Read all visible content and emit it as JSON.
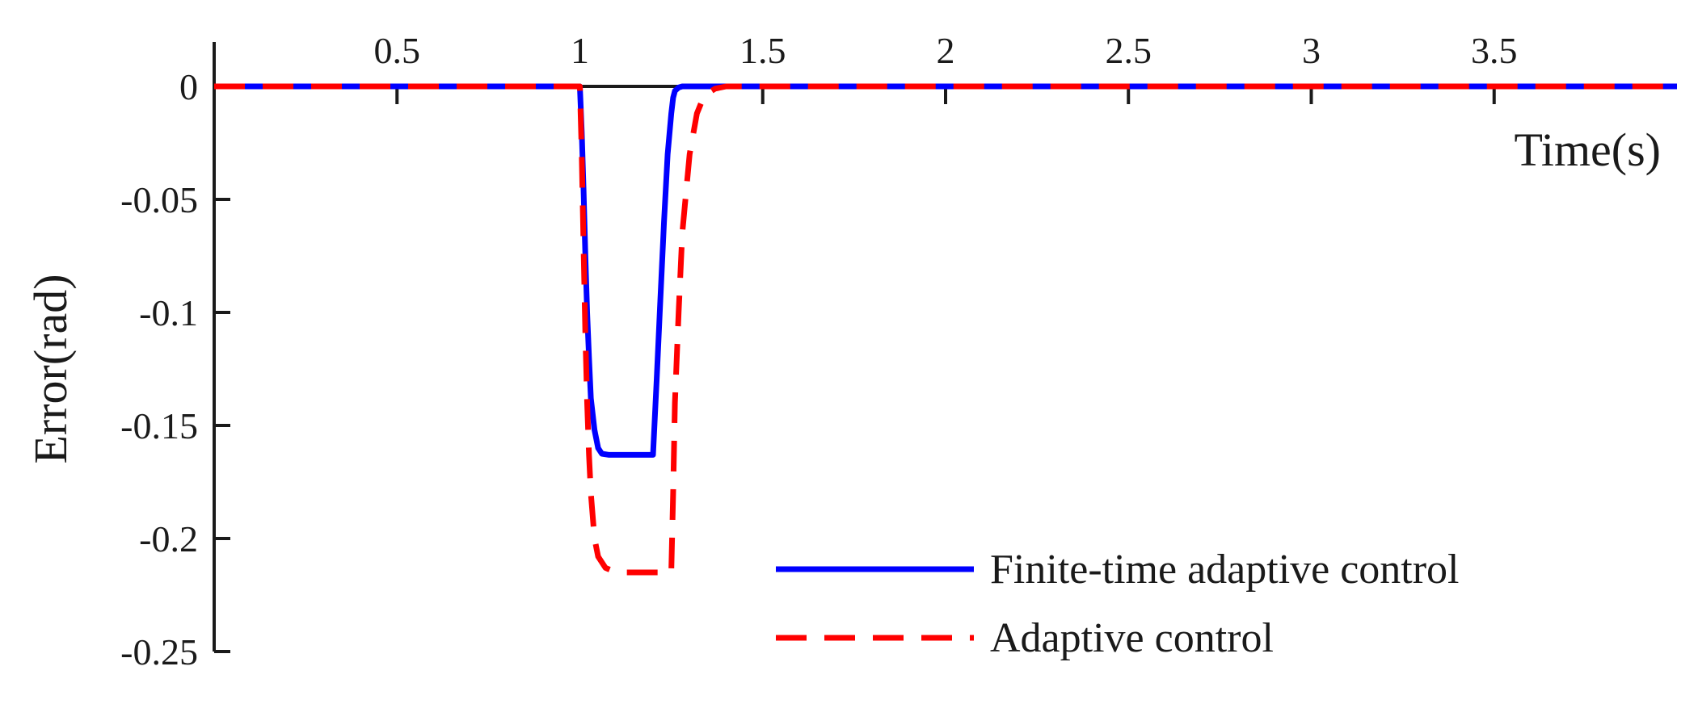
{
  "chart_data": {
    "type": "line",
    "title": "",
    "xlabel": "Time(s)",
    "ylabel": "Error(rad)",
    "xlim": [
      0,
      4
    ],
    "ylim": [
      -0.25,
      0
    ],
    "x_ticks": [
      0.5,
      1,
      1.5,
      2,
      2.5,
      3,
      3.5
    ],
    "x_tick_labels": [
      "0.5",
      "1",
      "1.5",
      "2",
      "2.5",
      "3",
      "3.5"
    ],
    "y_ticks": [
      0,
      -0.05,
      -0.1,
      -0.15,
      -0.2,
      -0.25
    ],
    "y_tick_labels": [
      "0",
      "-0.05",
      "-0.1",
      "-0.15",
      "-0.2",
      "-0.25"
    ],
    "x_axis_position": "y = 0",
    "grid": false,
    "legend_position": "bottom-right",
    "series": [
      {
        "name": "Finite-time adaptive control",
        "color": "#0000ff",
        "style": "solid",
        "x": [
          0,
          1.0,
          1.005,
          1.01,
          1.015,
          1.02,
          1.025,
          1.03,
          1.04,
          1.05,
          1.06,
          1.08,
          1.1,
          1.15,
          1.2,
          1.21,
          1.22,
          1.23,
          1.24,
          1.25,
          1.255,
          1.26,
          1.27,
          1.28,
          1.3,
          4.0
        ],
        "y": [
          0,
          0,
          -0.02,
          -0.045,
          -0.075,
          -0.1,
          -0.12,
          -0.138,
          -0.152,
          -0.16,
          -0.1625,
          -0.163,
          -0.163,
          -0.163,
          -0.163,
          -0.13,
          -0.095,
          -0.06,
          -0.03,
          -0.012,
          -0.005,
          -0.002,
          -0.0005,
          0,
          0,
          0
        ]
      },
      {
        "name": "Adaptive control",
        "color": "#ff0000",
        "style": "dashed",
        "x": [
          0,
          1.0,
          1.005,
          1.01,
          1.015,
          1.02,
          1.025,
          1.03,
          1.04,
          1.05,
          1.07,
          1.1,
          1.15,
          1.2,
          1.25,
          1.255,
          1.26,
          1.27,
          1.28,
          1.3,
          1.32,
          1.34,
          1.37,
          1.4,
          4.0
        ],
        "y": [
          0,
          0,
          -0.03,
          -0.07,
          -0.11,
          -0.14,
          -0.163,
          -0.18,
          -0.2,
          -0.208,
          -0.213,
          -0.215,
          -0.215,
          -0.215,
          -0.215,
          -0.18,
          -0.14,
          -0.1,
          -0.065,
          -0.03,
          -0.012,
          -0.004,
          -0.001,
          0,
          0
        ]
      }
    ]
  }
}
